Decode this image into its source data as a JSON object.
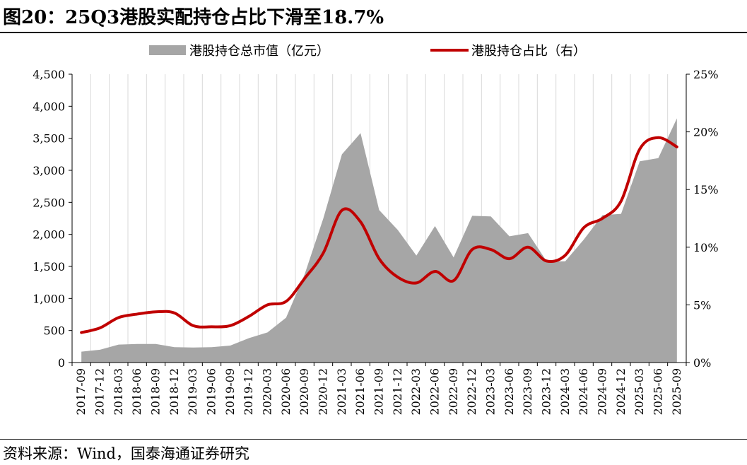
{
  "title": "图20：25Q3港股实配持仓占比下滑至18.7%",
  "source": "资料来源：Wind，国泰海通证券研究",
  "colors": {
    "area": "#a6a6a6",
    "line": "#c00000",
    "grid": "#d9d9d9"
  },
  "chart_data": {
    "type": "area",
    "categories": [
      "2017-09",
      "2017-12",
      "2018-03",
      "2018-06",
      "2018-09",
      "2018-12",
      "2019-03",
      "2019-06",
      "2019-09",
      "2019-12",
      "2020-03",
      "2020-06",
      "2020-09",
      "2020-12",
      "2021-03",
      "2021-06",
      "2021-09",
      "2021-12",
      "2022-03",
      "2022-06",
      "2022-09",
      "2022-12",
      "2023-03",
      "2023-06",
      "2023-09",
      "2023-12",
      "2024-03",
      "2024-06",
      "2024-09",
      "2024-12",
      "2025-03",
      "2025-06",
      "2025-09"
    ],
    "series": [
      {
        "name": "港股持仓总市值（亿元）",
        "type": "area",
        "axis": "left",
        "values": [
          170,
          200,
          280,
          290,
          290,
          240,
          235,
          240,
          265,
          380,
          470,
          700,
          1380,
          2250,
          3250,
          3580,
          2380,
          2070,
          1670,
          2130,
          1640,
          2290,
          2280,
          1970,
          2020,
          1580,
          1580,
          1920,
          2300,
          2320,
          3140,
          3190,
          3810
        ]
      },
      {
        "name": "港股持仓占比（右）",
        "type": "line",
        "axis": "right",
        "values": [
          2.6,
          3.0,
          3.9,
          4.2,
          4.4,
          4.3,
          3.2,
          3.1,
          3.2,
          4.0,
          5.0,
          5.3,
          7.3,
          9.5,
          13.2,
          12.2,
          9.0,
          7.4,
          6.9,
          7.9,
          7.1,
          9.8,
          9.8,
          9.0,
          10.0,
          8.8,
          9.3,
          11.7,
          12.5,
          14.0,
          18.5,
          19.5,
          18.7
        ]
      }
    ],
    "left_axis": {
      "ylim": [
        0,
        4500
      ],
      "ticks": [
        "0",
        "500",
        "1,000",
        "1,500",
        "2,000",
        "2,500",
        "3,000",
        "3,500",
        "4,000",
        "4,500"
      ],
      "tick_values": [
        0,
        500,
        1000,
        1500,
        2000,
        2500,
        3000,
        3500,
        4000,
        4500
      ]
    },
    "right_axis": {
      "ylim": [
        0,
        25
      ],
      "ticks": [
        "0%",
        "5%",
        "10%",
        "15%",
        "20%",
        "25%"
      ],
      "tick_values": [
        0,
        5,
        10,
        15,
        20,
        25
      ]
    },
    "legend_position": "top-center",
    "grid": "vertical"
  }
}
